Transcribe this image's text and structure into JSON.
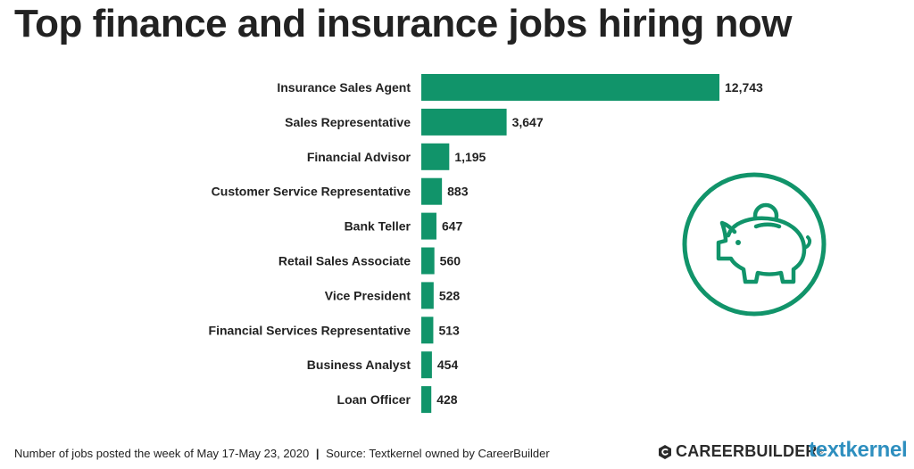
{
  "title": "Top finance and insurance jobs hiring now",
  "footer": {
    "note": "Number of jobs posted the week of May 17-May 23, 2020",
    "separator": "|",
    "source": "Source: Textkernel owned by CareerBuilder"
  },
  "logos": {
    "careerbuilder": "CAREERBUILDER",
    "careerbuilder_mark": "®",
    "textkernel": "textkernel"
  },
  "colors": {
    "bar": "#11946a",
    "icon": "#11946a",
    "text": "#222222",
    "textkernel": "#2e8fbf"
  },
  "icon": "piggy-bank-icon",
  "chart_data": {
    "type": "bar",
    "orientation": "horizontal",
    "title": "Top finance and insurance jobs hiring now",
    "xlabel": "",
    "ylabel": "",
    "grid": false,
    "categories": [
      "Insurance Sales Agent",
      "Sales Representative",
      "Financial Advisor",
      "Customer Service Representative",
      "Bank Teller",
      "Retail Sales Associate",
      "Vice President",
      "Financial Services Representative",
      "Business Analyst",
      "Loan Officer"
    ],
    "values": [
      12743,
      3647,
      1195,
      883,
      647,
      560,
      528,
      513,
      454,
      428
    ],
    "value_labels": [
      "12,743",
      "3,647",
      "1,195",
      "883",
      "647",
      "560",
      "528",
      "513",
      "454",
      "428"
    ],
    "xlim": [
      0,
      12743
    ]
  }
}
